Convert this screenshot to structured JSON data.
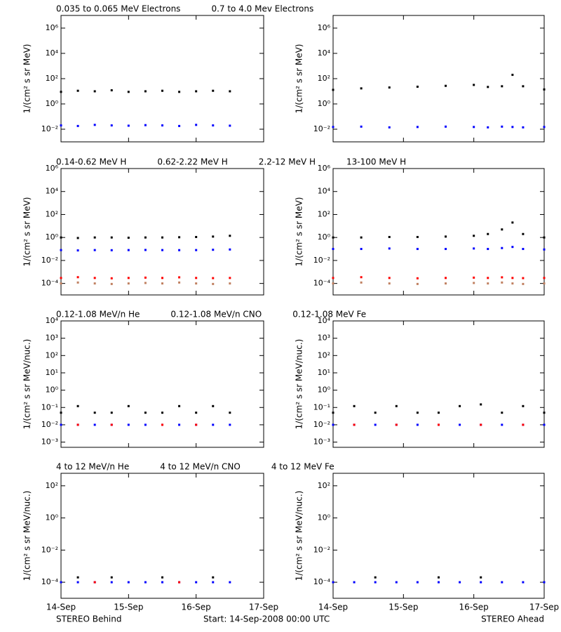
{
  "chart_data": [
    {
      "type": "scatter",
      "log_y": true,
      "ylabel": "1/(cm² s sr MeV)",
      "x": [
        0,
        0.25,
        0.5,
        0.75,
        1,
        1.25,
        1.5,
        1.75,
        2,
        2.25,
        2.5
      ],
      "xlim": [
        0,
        3
      ],
      "ylim": [
        0.001,
        10000000
      ],
      "yticks": [
        {
          "value": 0.01,
          "label": "10⁻²"
        },
        {
          "value": 1,
          "label": "10⁰"
        },
        {
          "value": 100,
          "label": "10²"
        },
        {
          "value": 10000,
          "label": "10⁴"
        },
        {
          "value": 1000000,
          "label": "10⁶"
        }
      ],
      "series": [
        {
          "name": "0.035 to 0.065 MeV Electrons",
          "color": "#000000",
          "values": [
            9,
            11,
            10,
            12,
            9,
            10,
            11,
            9,
            10,
            11,
            10
          ]
        },
        {
          "name": "0.7 to 4.0 Mev Electrons",
          "color": "#0000ff",
          "values": [
            0.02,
            0.018,
            0.022,
            0.02,
            0.019,
            0.021,
            0.02,
            0.018,
            0.022,
            0.02,
            0.019
          ]
        }
      ]
    },
    {
      "type": "scatter",
      "log_y": true,
      "ylabel": "1/(cm² s sr MeV)",
      "x": [
        0,
        0.4,
        0.8,
        1.2,
        1.6,
        2.0,
        2.2,
        2.4,
        2.55,
        2.7,
        3.0
      ],
      "xlim": [
        0,
        3
      ],
      "ylim": [
        0.001,
        10000000
      ],
      "yticks": [
        {
          "value": 0.01,
          "label": "10⁻²"
        },
        {
          "value": 1,
          "label": "10⁰"
        },
        {
          "value": 100,
          "label": "10²"
        },
        {
          "value": 10000,
          "label": "10⁴"
        },
        {
          "value": 1000000,
          "label": "10⁶"
        }
      ],
      "series": [
        {
          "color": "#000000",
          "values": [
            13,
            17,
            20,
            23,
            27,
            32,
            22,
            25,
            200,
            25,
            14
          ]
        },
        {
          "color": "#0000ff",
          "values": [
            0.015,
            0.016,
            0.014,
            0.015,
            0.016,
            0.015,
            0.014,
            0.016,
            0.015,
            0.014,
            0.015
          ]
        }
      ]
    },
    {
      "type": "scatter",
      "log_y": true,
      "ylabel": "1/(cm² s sr MeV)",
      "x": [
        0,
        0.25,
        0.5,
        0.75,
        1,
        1.25,
        1.5,
        1.75,
        2,
        2.25,
        2.5
      ],
      "xlim": [
        0,
        3
      ],
      "ylim": [
        1e-05,
        1000000
      ],
      "yticks": [
        {
          "value": 0.0001,
          "label": "10⁻⁴"
        },
        {
          "value": 0.01,
          "label": "10⁻²"
        },
        {
          "value": 1,
          "label": "10⁰"
        },
        {
          "value": 100,
          "label": "10²"
        },
        {
          "value": 10000,
          "label": "10⁴"
        },
        {
          "value": 1000000,
          "label": "10⁶"
        }
      ],
      "series": [
        {
          "name": "0.14-0.62 MeV H",
          "color": "#000000",
          "values": [
            1,
            0.9,
            1,
            1,
            0.95,
            1,
            1,
            1.05,
            1.1,
            1.2,
            1.4
          ]
        },
        {
          "name": "0.62-2.22 MeV H",
          "color": "#0000ff",
          "values": [
            0.08,
            0.075,
            0.08,
            0.078,
            0.08,
            0.082,
            0.08,
            0.079,
            0.08,
            0.085,
            0.09
          ]
        },
        {
          "name": "2.2-12 MeV H",
          "color": "#c08060",
          "values": [
            0.0001,
            0.00012,
            0.0001,
            9e-05,
            0.0001,
            0.00011,
            0.0001,
            0.00012,
            0.0001,
            9e-05,
            0.0001
          ]
        },
        {
          "name": "13-100 MeV H",
          "color": "#ff0000",
          "values": [
            0.0003,
            0.00035,
            0.0003,
            0.00028,
            0.0003,
            0.00032,
            0.0003,
            0.00034,
            0.0003,
            0.00029,
            0.0003
          ]
        }
      ]
    },
    {
      "type": "scatter",
      "log_y": true,
      "ylabel": "1/(cm² s sr MeV)",
      "x": [
        0,
        0.4,
        0.8,
        1.2,
        1.6,
        2.0,
        2.2,
        2.4,
        2.55,
        2.7,
        3.0
      ],
      "xlim": [
        0,
        3
      ],
      "ylim": [
        1e-05,
        1000000
      ],
      "yticks": [
        {
          "value": 0.0001,
          "label": "10⁻⁴"
        },
        {
          "value": 0.01,
          "label": "10⁻²"
        },
        {
          "value": 1,
          "label": "10⁰"
        },
        {
          "value": 100,
          "label": "10²"
        },
        {
          "value": 10000,
          "label": "10⁴"
        },
        {
          "value": 1000000,
          "label": "10⁶"
        }
      ],
      "series": [
        {
          "color": "#000000",
          "values": [
            1,
            1,
            1.1,
            1.1,
            1.2,
            1.4,
            2,
            5,
            20,
            2,
            1
          ]
        },
        {
          "color": "#0000ff",
          "values": [
            0.1,
            0.1,
            0.11,
            0.1,
            0.1,
            0.11,
            0.1,
            0.12,
            0.15,
            0.1,
            0.09
          ]
        },
        {
          "color": "#ff0000",
          "values": [
            0.0003,
            0.00035,
            0.0003,
            0.00028,
            0.0003,
            0.00032,
            0.0003,
            0.00034,
            0.0003,
            0.00029,
            0.0003
          ]
        },
        {
          "color": "#c08060",
          "values": [
            0.0001,
            0.00012,
            0.0001,
            9e-05,
            0.0001,
            0.00011,
            0.0001,
            0.00012,
            0.0001,
            9e-05,
            0.0001
          ]
        }
      ]
    },
    {
      "type": "scatter",
      "log_y": true,
      "ylabel": "1/(cm² s sr MeV/nuc.)",
      "x": [
        0,
        0.25,
        0.5,
        0.75,
        1,
        1.25,
        1.5,
        1.75,
        2,
        2.25,
        2.5
      ],
      "xlim": [
        0,
        3
      ],
      "ylim": [
        0.0005,
        10000
      ],
      "yticks": [
        {
          "value": 0.001,
          "label": "10⁻³"
        },
        {
          "value": 0.01,
          "label": "10⁻²"
        },
        {
          "value": 0.1,
          "label": "10⁻¹"
        },
        {
          "value": 1,
          "label": "10⁰"
        },
        {
          "value": 10,
          "label": "10¹"
        },
        {
          "value": 100,
          "label": "10²"
        },
        {
          "value": 1000,
          "label": "10³"
        },
        {
          "value": 10000,
          "label": "10⁴"
        }
      ],
      "series": [
        {
          "name": "0.12-1.08 MeV/n He",
          "color": "#000000",
          "values": [
            0.05,
            0.12,
            0.05,
            0.05,
            0.12,
            0.05,
            0.05,
            0.12,
            0.05,
            0.12,
            0.05
          ]
        },
        {
          "name": "0.12-1.08 MeV/n CNO",
          "color": "#0000ff",
          "values": [
            0.01,
            0.01,
            0.01,
            0.01,
            0.01,
            0.01,
            0.01,
            0.01,
            0.01,
            0.01,
            0.01
          ]
        },
        {
          "name": "0.12-1.08 MeV Fe",
          "color": "#ff0000",
          "values": [
            null,
            0.01,
            null,
            0.01,
            null,
            null,
            0.01,
            null,
            0.01,
            null,
            null
          ]
        }
      ]
    },
    {
      "type": "scatter",
      "log_y": true,
      "ylabel": "1/(cm² s sr MeV/nuc.)",
      "x": [
        0,
        0.3,
        0.6,
        0.9,
        1.2,
        1.5,
        1.8,
        2.1,
        2.4,
        2.7,
        3.0
      ],
      "xlim": [
        0,
        3
      ],
      "ylim": [
        0.0005,
        10000
      ],
      "yticks": [
        {
          "value": 0.001,
          "label": "10⁻³"
        },
        {
          "value": 0.01,
          "label": "10⁻²"
        },
        {
          "value": 0.1,
          "label": "10⁻¹"
        },
        {
          "value": 1,
          "label": "10⁰"
        },
        {
          "value": 10,
          "label": "10¹"
        },
        {
          "value": 100,
          "label": "10²"
        },
        {
          "value": 1000,
          "label": "10³"
        },
        {
          "value": 10000,
          "label": "10⁴"
        }
      ],
      "series": [
        {
          "color": "#000000",
          "values": [
            0.05,
            0.12,
            0.05,
            0.12,
            0.05,
            0.05,
            0.12,
            0.15,
            0.05,
            0.12,
            0.05
          ]
        },
        {
          "color": "#0000ff",
          "values": [
            0.01,
            0.01,
            0.01,
            0.01,
            0.01,
            0.01,
            0.01,
            0.01,
            0.01,
            0.01,
            0.01
          ]
        },
        {
          "color": "#ff0000",
          "values": [
            null,
            0.01,
            null,
            0.01,
            null,
            0.01,
            null,
            0.01,
            null,
            0.01,
            null
          ]
        }
      ]
    },
    {
      "type": "scatter",
      "log_y": true,
      "ylabel": "1/(cm² s sr MeV/nuc.)",
      "x": [
        0,
        0.25,
        0.5,
        0.75,
        1,
        1.25,
        1.5,
        1.75,
        2,
        2.25,
        2.5
      ],
      "xlim": [
        0,
        3
      ],
      "xticks": [
        {
          "value": 0,
          "label": "14-Sep"
        },
        {
          "value": 1,
          "label": "15-Sep"
        },
        {
          "value": 2,
          "label": "16-Sep"
        },
        {
          "value": 3,
          "label": "17-Sep"
        }
      ],
      "ylim": [
        1e-05,
        600
      ],
      "yticks": [
        {
          "value": 0.0001,
          "label": "10⁻⁴"
        },
        {
          "value": 0.01,
          "label": "10⁻²"
        },
        {
          "value": 1,
          "label": "10⁰"
        },
        {
          "value": 100,
          "label": "10²"
        }
      ],
      "series": [
        {
          "name": "4 to 12 MeV/n He",
          "color": "#000000",
          "values": [
            null,
            0.0002,
            null,
            0.0002,
            null,
            null,
            0.0002,
            null,
            null,
            0.0002,
            null
          ]
        },
        {
          "name": "4 to 12 MeV/n CNO",
          "color": "#0000ff",
          "values": [
            0.0001,
            0.0001,
            0.0001,
            0.0001,
            0.0001,
            0.0001,
            0.0001,
            0.0001,
            0.0001,
            0.0001,
            0.0001
          ]
        },
        {
          "name": "4 to 12 MeV Fe",
          "color": "#ff0000",
          "values": [
            null,
            null,
            0.0001,
            null,
            null,
            null,
            null,
            0.0001,
            null,
            null,
            null
          ]
        }
      ]
    },
    {
      "type": "scatter",
      "log_y": true,
      "ylabel": "1/(cm² s sr MeV/nuc.)",
      "x": [
        0,
        0.3,
        0.6,
        0.9,
        1.2,
        1.5,
        1.8,
        2.1,
        2.4,
        2.7,
        3.0
      ],
      "xlim": [
        0,
        3
      ],
      "xticks": [
        {
          "value": 0,
          "label": "14-Sep"
        },
        {
          "value": 1,
          "label": "15-Sep"
        },
        {
          "value": 2,
          "label": "16-Sep"
        },
        {
          "value": 3,
          "label": "17-Sep"
        }
      ],
      "ylim": [
        1e-05,
        600
      ],
      "yticks": [
        {
          "value": 0.0001,
          "label": "10⁻⁴"
        },
        {
          "value": 0.01,
          "label": "10⁻²"
        },
        {
          "value": 1,
          "label": "10⁰"
        },
        {
          "value": 100,
          "label": "10²"
        }
      ],
      "series": [
        {
          "color": "#000000",
          "values": [
            null,
            null,
            0.0002,
            null,
            null,
            0.0002,
            null,
            0.0002,
            null,
            null,
            null
          ]
        },
        {
          "color": "#0000ff",
          "values": [
            0.0001,
            0.0001,
            0.0001,
            0.0001,
            0.0001,
            0.0001,
            0.0001,
            0.0001,
            0.0001,
            0.0001,
            0.0001
          ]
        }
      ]
    }
  ],
  "footer": {
    "left": "STEREO Behind",
    "center": "Start: 14-Sep-2008 00:00 UTC",
    "right": "STEREO Ahead"
  }
}
